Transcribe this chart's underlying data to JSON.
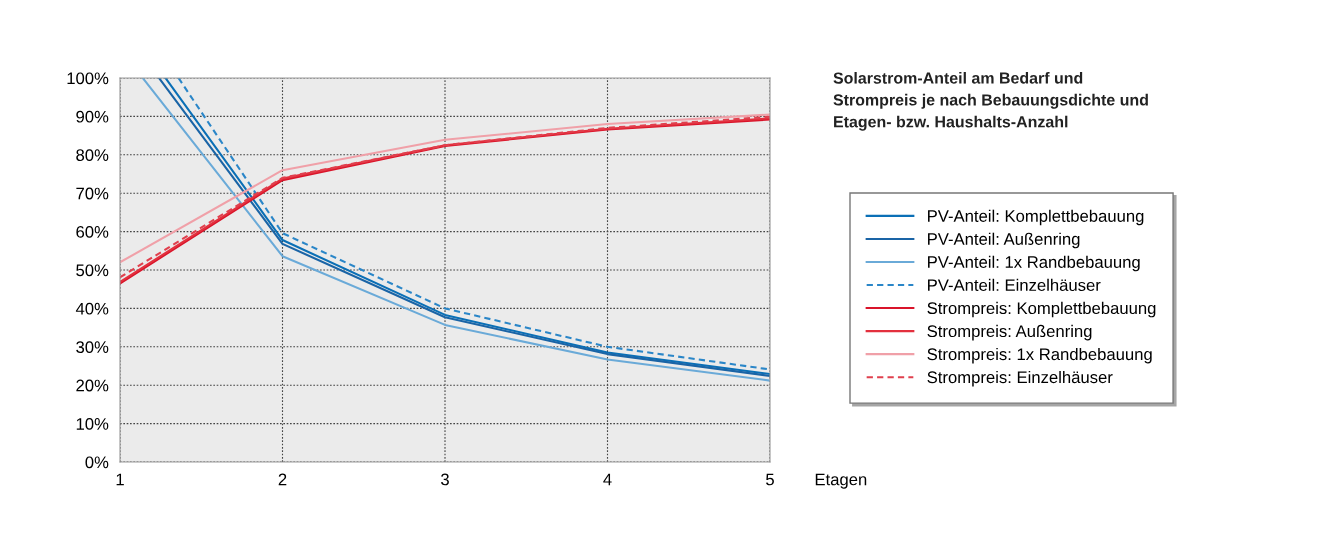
{
  "chart_data": {
    "type": "line",
    "title": "Solarstrom-Anteil am Bedarf und\nStrompreis je nach Bebauungsdichte und\nEtagen- bzw. Haushalts-Anzahl",
    "xlabel": "Etagen",
    "x": [
      1,
      2,
      3,
      4,
      5
    ],
    "series": [
      {
        "name": "PV-Anteil: Komplettbebauung",
        "color": "#0a6fb6",
        "x": [
          1.28,
          2,
          3,
          4,
          5
        ],
        "values": [
          100,
          57.8,
          38.3,
          28.5,
          22.9
        ]
      },
      {
        "name": "PV-Anteil: Außenring",
        "color": "#1a64a6",
        "x": [
          1.24,
          2,
          3,
          4,
          5
        ],
        "values": [
          100,
          56.8,
          37.7,
          28.1,
          22.4
        ]
      },
      {
        "name": "PV-Anteil: 1x Randbebauung",
        "color": "#6aaad8",
        "x": [
          1.14,
          2,
          3,
          4,
          5
        ],
        "values": [
          100,
          53.6,
          35.7,
          26.7,
          21.2
        ]
      },
      {
        "name": "PV-Anteil: Einzelhäuser",
        "color": "#2a86c8",
        "line_style": "dashed",
        "x": [
          1.36,
          2,
          3,
          4,
          5
        ],
        "values": [
          100,
          59.6,
          40.0,
          30.0,
          24.1
        ]
      },
      {
        "name": "Strompreis: Komplettbebauung",
        "color": "#d9142a",
        "values": [
          46.5,
          73.4,
          82.3,
          86.6,
          89.2
        ]
      },
      {
        "name": "Strompreis: Außenring",
        "color": "#e3303e",
        "values": [
          46.9,
          73.8,
          82.5,
          86.8,
          89.5
        ]
      },
      {
        "name": "Strompreis: 1x Randbebauung",
        "color": "#f0a0a8",
        "values": [
          52.0,
          76.0,
          83.9,
          88.0,
          90.5
        ]
      },
      {
        "name": "Strompreis: Einzelhäuser",
        "color": "#e0404e",
        "line_style": "dashed",
        "values": [
          48.1,
          74.0,
          82.5,
          87.0,
          89.9
        ]
      }
    ],
    "xlim": [
      1,
      5
    ],
    "xticks": [
      1,
      2,
      3,
      4,
      5
    ],
    "ylim": [
      0,
      100
    ],
    "yticks": [
      {
        "value": 0,
        "label": "0%"
      },
      {
        "value": 10,
        "label": "10%"
      },
      {
        "value": 20,
        "label": "20%"
      },
      {
        "value": 30,
        "label": "30%"
      },
      {
        "value": 40,
        "label": "40%"
      },
      {
        "value": 50,
        "label": "50%"
      },
      {
        "value": 60,
        "label": "60%"
      },
      {
        "value": 70,
        "label": "70%"
      },
      {
        "value": 80,
        "label": "80%"
      },
      {
        "value": 90,
        "label": "90%"
      },
      {
        "value": 100,
        "label": "100%"
      }
    ],
    "grid": true,
    "legend": "right",
    "line_style": "solid"
  }
}
